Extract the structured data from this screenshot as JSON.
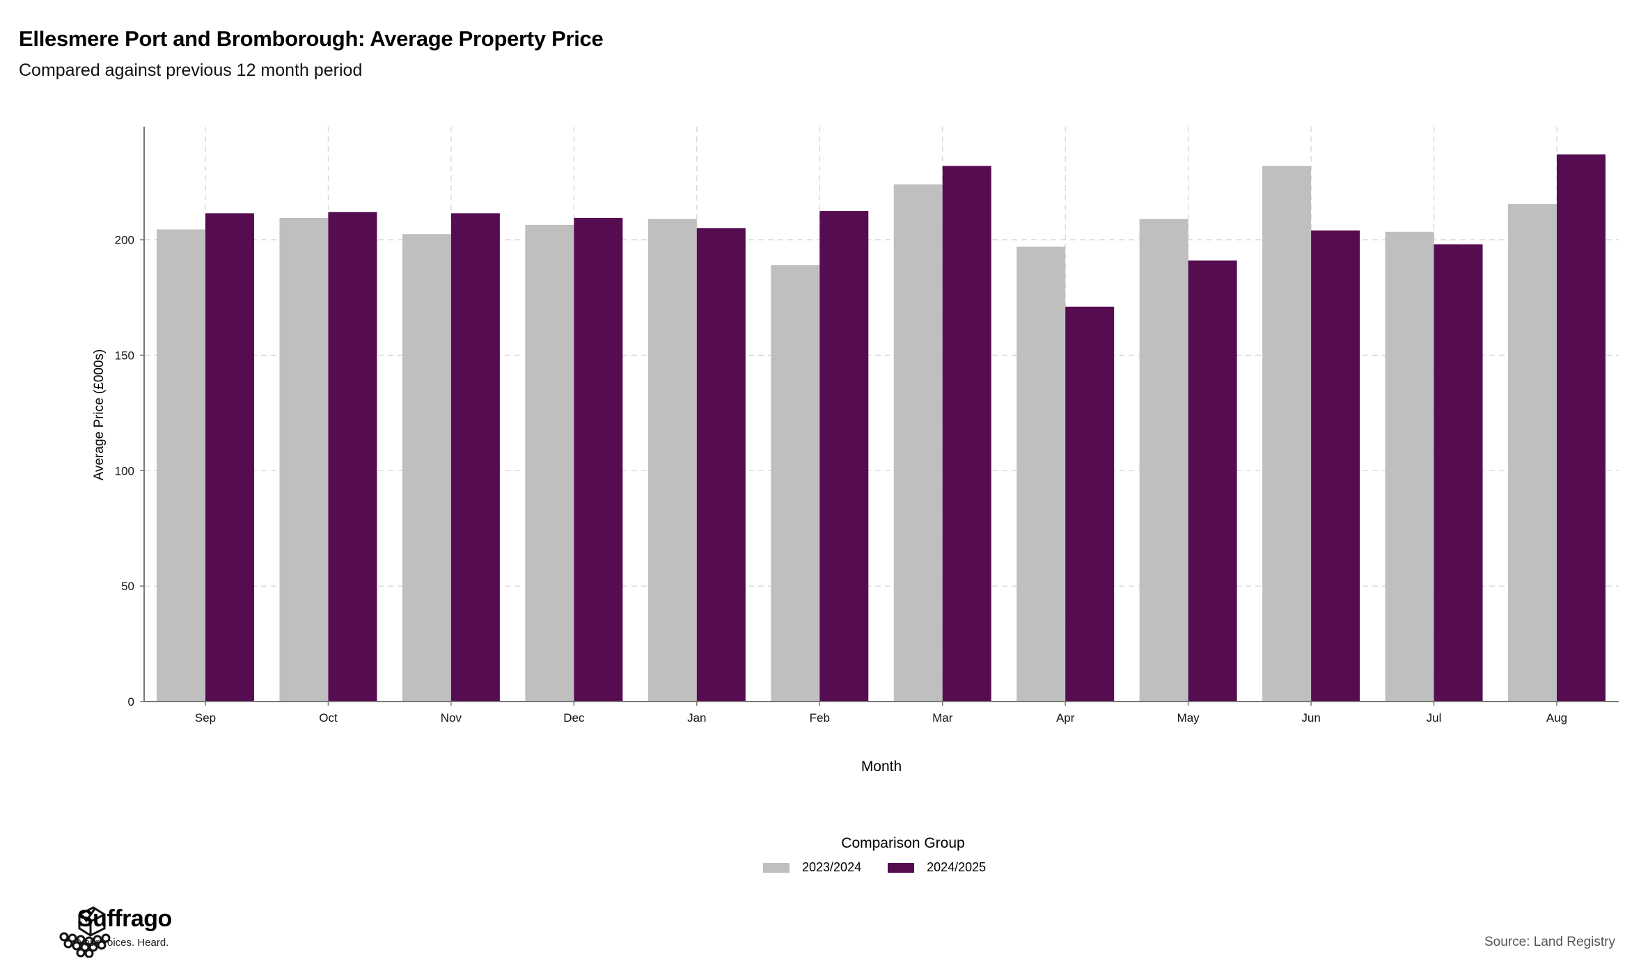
{
  "header": {
    "title": "Ellesmere Port and Bromborough: Average Property Price",
    "subtitle": "Compared against previous 12 month period"
  },
  "legend": {
    "title": "Comparison Group",
    "items": [
      {
        "label": "2023/2024",
        "color": "#bfbfbf"
      },
      {
        "label": "2024/2025",
        "color": "#560c51"
      }
    ]
  },
  "footer": {
    "brand_name": "Suffrago",
    "brand_tagline": "Your voices. Heard.",
    "source": "Source: Land Registry"
  },
  "chart_data": {
    "type": "bar",
    "xlabel": "Month",
    "ylabel": "Average Price (£000s)",
    "ylim": [
      0,
      249
    ],
    "yticks": [
      0,
      50,
      100,
      150,
      200
    ],
    "grid": true,
    "legend_position": "bottom",
    "categories": [
      "Sep",
      "Oct",
      "Nov",
      "Dec",
      "Jan",
      "Feb",
      "Mar",
      "Apr",
      "May",
      "Jun",
      "Jul",
      "Aug"
    ],
    "series": [
      {
        "name": "2023/2024",
        "color": "#bfbfbf",
        "values": [
          204.5,
          209.5,
          202.5,
          206.5,
          209.0,
          189.0,
          224.0,
          197.0,
          209.0,
          232.0,
          203.5,
          215.5
        ]
      },
      {
        "name": "2024/2025",
        "color": "#560c51",
        "values": [
          211.5,
          212.0,
          211.5,
          209.5,
          205.0,
          212.5,
          232.0,
          171.0,
          191.0,
          204.0,
          198.0,
          237.0
        ]
      }
    ]
  }
}
